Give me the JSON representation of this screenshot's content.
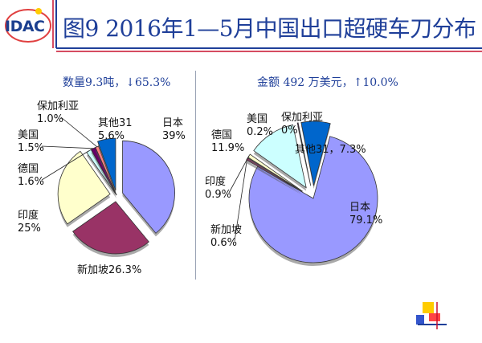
{
  "header": {
    "logo_text": "IDAC",
    "title": "图9  2016年1—5月中国出口超硬车刀分布"
  },
  "colors": {
    "title": "#1f3f99",
    "frame_red": "#c8102e",
    "frame_blue": "#1f3f99",
    "accent_yellow": "#ffcc00"
  },
  "chart_data": [
    {
      "type": "pie",
      "title": "数量9.3吨，↓65.3%",
      "slices": [
        {
          "label": "日本",
          "value": 39,
          "value_label": "39%",
          "color": "#9999ff"
        },
        {
          "label": "新加坡",
          "value": 26.3,
          "value_label": "26.3%",
          "color": "#993366"
        },
        {
          "label": "印度",
          "value": 25,
          "value_label": "25%",
          "color": "#ffffcc"
        },
        {
          "label": "德国",
          "value": 1.6,
          "value_label": "1.6%",
          "color": "#ccffff"
        },
        {
          "label": "美国",
          "value": 1.5,
          "value_label": "1.5%",
          "color": "#660066"
        },
        {
          "label": "保加利亚",
          "value": 1.0,
          "value_label": "1.0%",
          "color": "#ff8080"
        },
        {
          "label": "其他31",
          "value": 5.6,
          "value_label": "5.6%",
          "color": "#0066cc"
        }
      ]
    },
    {
      "type": "pie",
      "title": "金额 492 万美元，↑10.0%",
      "slices": [
        {
          "label": "日本",
          "value": 79.1,
          "value_label": "79.1%",
          "color": "#9999ff"
        },
        {
          "label": "新加坡",
          "value": 0.6,
          "value_label": "0.6%",
          "color": "#993366"
        },
        {
          "label": "印度",
          "value": 0.9,
          "value_label": "0.9%",
          "color": "#ffffcc"
        },
        {
          "label": "德国",
          "value": 11.9,
          "value_label": "11.9%",
          "color": "#ccffff"
        },
        {
          "label": "美国",
          "value": 0.2,
          "value_label": "0.2%",
          "color": "#660066"
        },
        {
          "label": "保加利亚",
          "value": 0,
          "value_label": "0%",
          "color": "#ff8080"
        },
        {
          "label": "其他31",
          "value": 7.3,
          "value_label": "7.3%",
          "color": "#0066cc"
        }
      ]
    }
  ]
}
